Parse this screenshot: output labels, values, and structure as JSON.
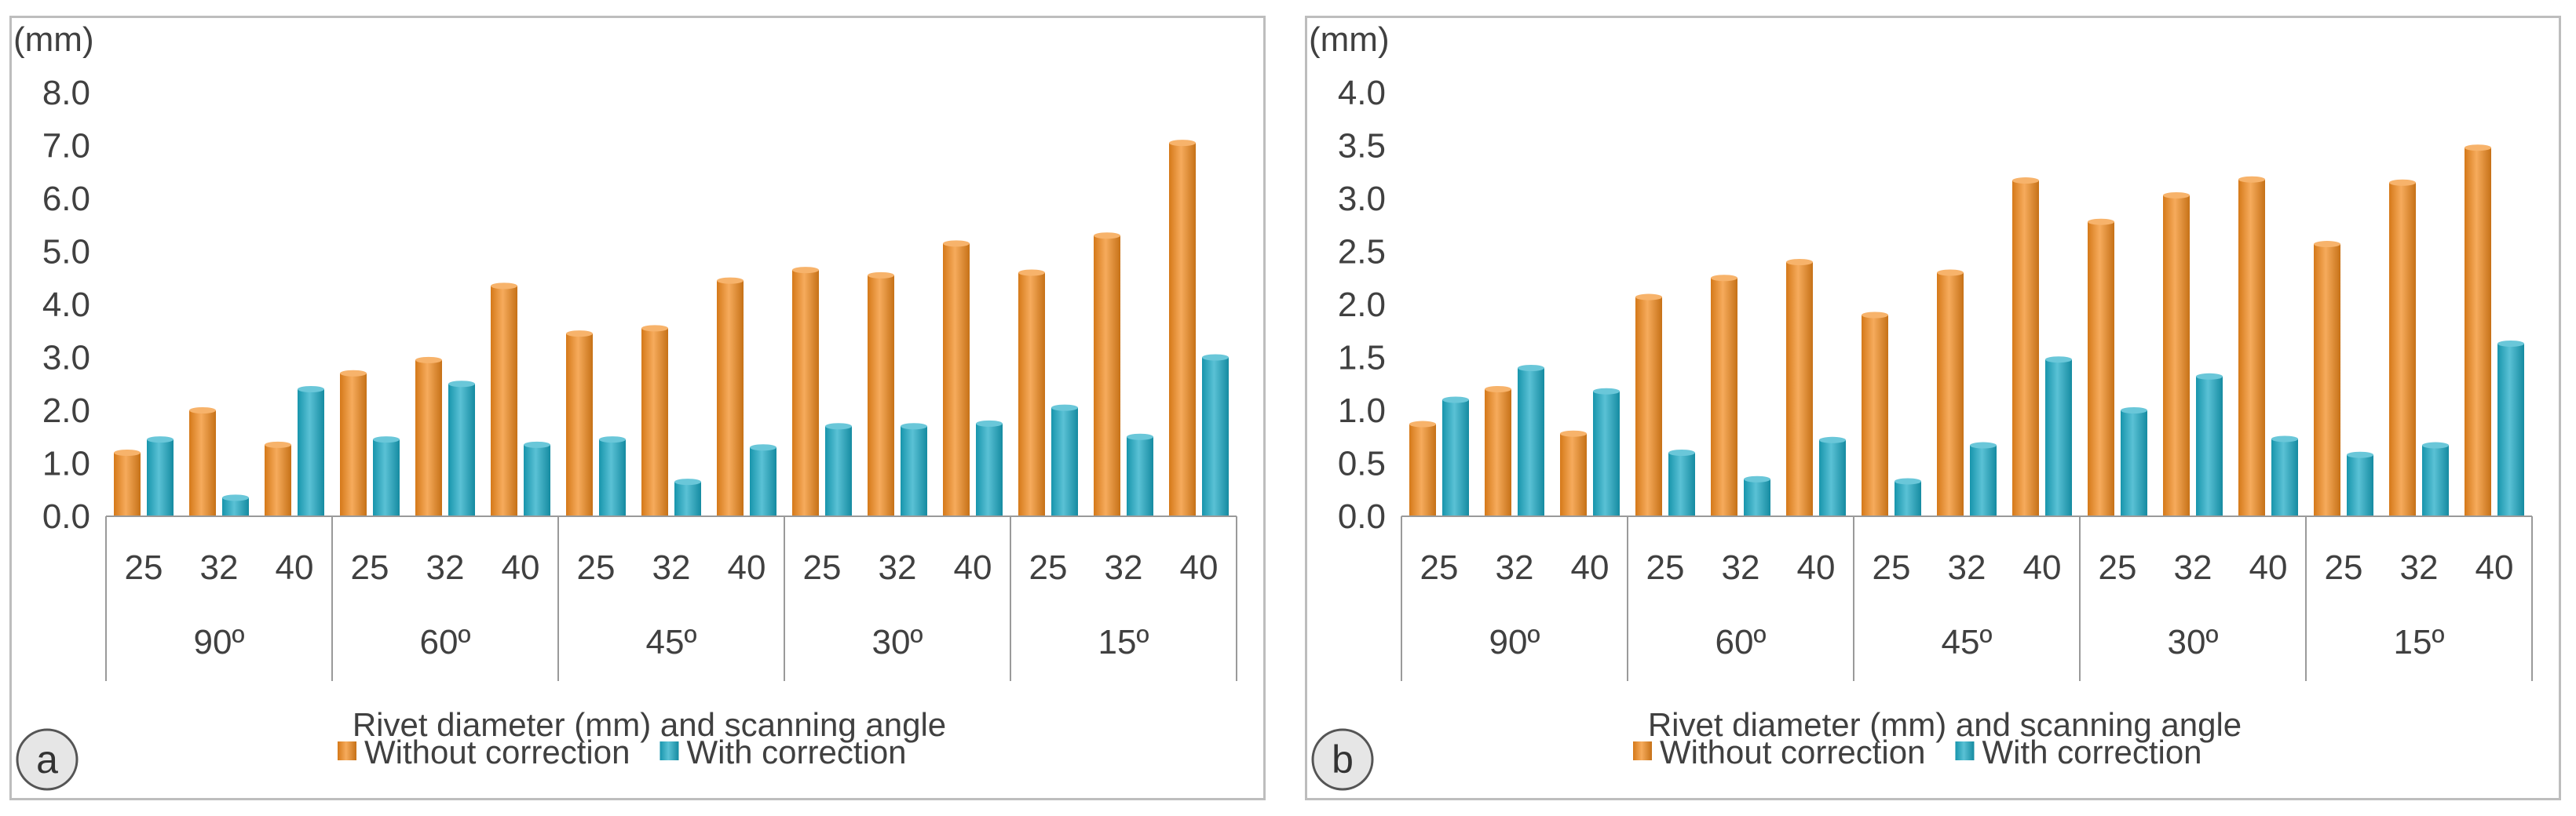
{
  "colors": {
    "without": "#f28a1c",
    "with": "#1aa9c4",
    "axis": "#9a9a9a"
  },
  "chart_data": [
    {
      "type": "bar",
      "panel_label": "a",
      "unit": "(mm)",
      "ylim": [
        0,
        8
      ],
      "yticks": [
        "0.0",
        "1.0",
        "2.0",
        "3.0",
        "4.0",
        "5.0",
        "6.0",
        "7.0",
        "8.0"
      ],
      "categories": [
        "25",
        "32",
        "40",
        "25",
        "32",
        "40",
        "25",
        "32",
        "40",
        "25",
        "32",
        "40",
        "25",
        "32",
        "40"
      ],
      "groups": [
        "90º",
        "60º",
        "45º",
        "30º",
        "15º"
      ],
      "xlabel": "Rivet diameter (mm) and scanning angle",
      "series": [
        {
          "name": "Without correction",
          "values": [
            1.2,
            2.0,
            1.35,
            2.7,
            2.95,
            4.35,
            3.45,
            3.55,
            4.45,
            4.65,
            4.55,
            5.15,
            4.6,
            5.3,
            7.05
          ]
        },
        {
          "name": "With correction",
          "values": [
            1.45,
            0.35,
            2.4,
            1.45,
            2.5,
            1.35,
            1.45,
            0.65,
            1.3,
            1.7,
            1.7,
            1.75,
            2.05,
            1.5,
            3.0
          ]
        }
      ]
    },
    {
      "type": "bar",
      "panel_label": "b",
      "unit": "(mm)",
      "ylim": [
        0,
        4
      ],
      "yticks": [
        "0.0",
        "0.5",
        "1.0",
        "1.5",
        "2.0",
        "2.5",
        "3.0",
        "3.5",
        "4.0"
      ],
      "categories": [
        "25",
        "32",
        "40",
        "25",
        "32",
        "40",
        "25",
        "32",
        "40",
        "25",
        "32",
        "40",
        "25",
        "32",
        "40"
      ],
      "groups": [
        "90º",
        "60º",
        "45º",
        "30º",
        "15º"
      ],
      "xlabel": "Rivet diameter (mm) and scanning angle",
      "series": [
        {
          "name": "Without correction",
          "values": [
            0.87,
            1.2,
            0.78,
            2.07,
            2.25,
            2.4,
            1.9,
            2.3,
            3.17,
            2.78,
            3.03,
            3.18,
            2.57,
            3.15,
            3.48
          ]
        },
        {
          "name": "With correction",
          "values": [
            1.1,
            1.4,
            1.18,
            0.6,
            0.35,
            0.72,
            0.33,
            0.67,
            1.48,
            1.0,
            1.32,
            0.73,
            0.58,
            0.67,
            1.63
          ]
        }
      ]
    }
  ]
}
